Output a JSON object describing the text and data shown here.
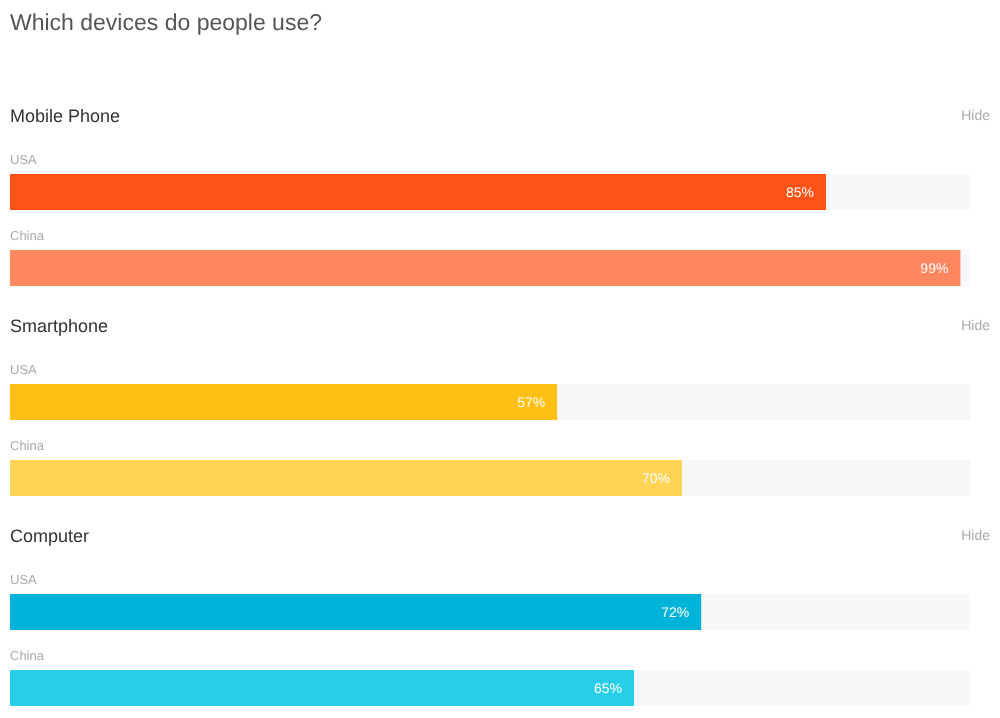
{
  "chart_data": [
    {
      "type": "other",
      "title": "Which devices do people use?"
    },
    {
      "type": "bar",
      "orientation": "horizontal",
      "title": "Mobile Phone",
      "annotations": [
        "Hide"
      ],
      "categories": [
        "USA",
        "China"
      ],
      "values": [
        85,
        99
      ],
      "colors": [
        "#ff5316",
        "#ff8760"
      ],
      "value_labels": [
        "85%",
        "99%"
      ],
      "xlim": [
        0,
        100
      ]
    },
    {
      "type": "bar",
      "orientation": "horizontal",
      "title": "Smartphone",
      "annotations": [
        "Hide"
      ],
      "categories": [
        "USA",
        "China"
      ],
      "values": [
        57,
        70
      ],
      "colors": [
        "#ffbf14",
        "#ffd454"
      ],
      "value_labels": [
        "57%",
        "70%"
      ],
      "xlim": [
        0,
        100
      ]
    },
    {
      "type": "bar",
      "orientation": "horizontal",
      "title": "Computer",
      "annotations": [
        "Hide"
      ],
      "categories": [
        "USA",
        "China"
      ],
      "values": [
        72,
        65
      ],
      "colors": [
        "#00b4d9",
        "#28cde8"
      ],
      "value_labels": [
        "72%",
        "65%"
      ],
      "xlim": [
        0,
        100
      ]
    }
  ]
}
